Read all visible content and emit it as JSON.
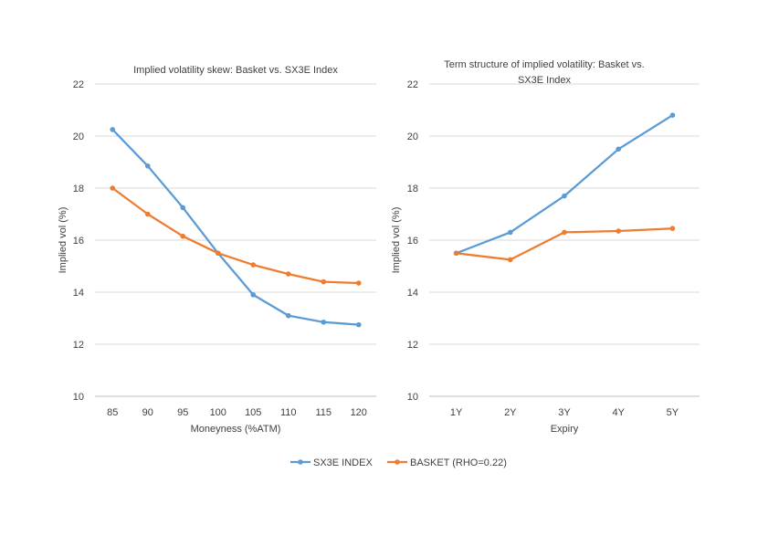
{
  "chart_data": [
    {
      "type": "line",
      "title": "Implied volatility skew: Basket vs. SX3E Index",
      "xlabel": "Moneyness (%ATM)",
      "ylabel": "Implied vol (%)",
      "categories": [
        "85",
        "90",
        "95",
        "100",
        "105",
        "110",
        "115",
        "120"
      ],
      "ylim": [
        10,
        22
      ],
      "yticks": [
        "10",
        "12",
        "14",
        "16",
        "18",
        "20",
        "22"
      ],
      "grid": true,
      "series": [
        {
          "name": "SX3E INDEX",
          "color": "#5B9BD5",
          "values": [
            20.25,
            18.85,
            17.25,
            15.5,
            13.9,
            13.1,
            12.85,
            12.75
          ]
        },
        {
          "name": "BASKET (RHO=0.22)",
          "color": "#ED7D31",
          "values": [
            18.0,
            17.0,
            16.15,
            15.5,
            15.05,
            14.7,
            14.4,
            14.35
          ]
        }
      ]
    },
    {
      "type": "line",
      "title": "Term structure of implied volatility: Basket vs. SX3E Index",
      "title_lines": [
        "Term structure of implied volatility: Basket vs.",
        "SX3E Index"
      ],
      "xlabel": "Expiry",
      "ylabel": "Implied vol (%)",
      "categories": [
        "1Y",
        "2Y",
        "3Y",
        "4Y",
        "5Y"
      ],
      "ylim": [
        10,
        22
      ],
      "yticks": [
        "10",
        "12",
        "14",
        "16",
        "18",
        "20",
        "22"
      ],
      "grid": true,
      "series": [
        {
          "name": "SX3E INDEX",
          "color": "#5B9BD5",
          "values": [
            15.5,
            16.3,
            17.7,
            19.5,
            20.8
          ]
        },
        {
          "name": "BASKET (RHO=0.22)",
          "color": "#ED7D31",
          "values": [
            15.5,
            15.25,
            16.3,
            16.35,
            16.45
          ]
        }
      ]
    }
  ],
  "legend": {
    "placement": "bottom-center",
    "items": [
      {
        "name": "SX3E INDEX",
        "color": "#5B9BD5"
      },
      {
        "name": "BASKET (RHO=0.22)",
        "color": "#ED7D31"
      }
    ]
  }
}
